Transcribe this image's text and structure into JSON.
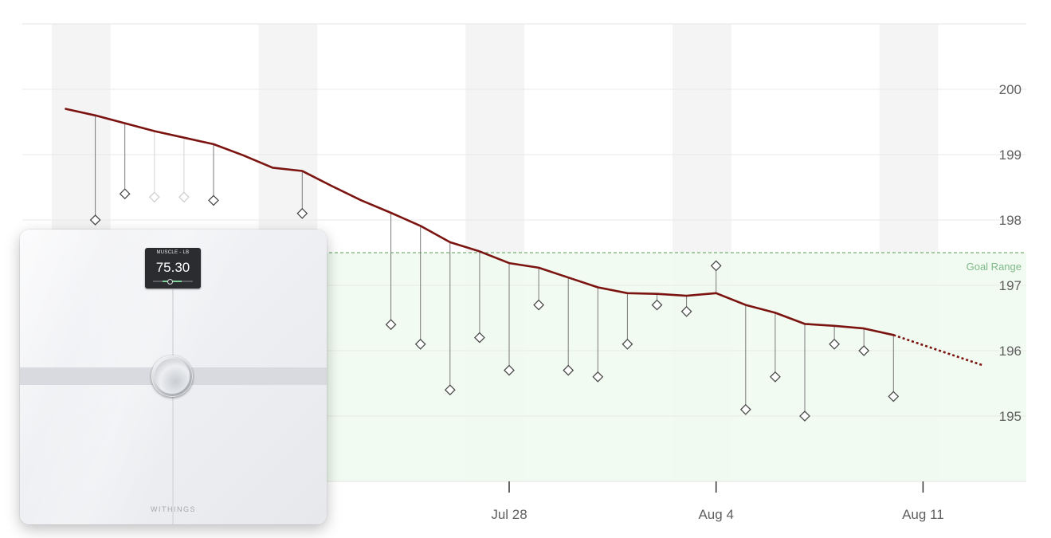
{
  "chart_data": {
    "type": "line",
    "x_labels": [
      "Jul 28",
      "Aug 4",
      "Aug 11"
    ],
    "ylim": [
      194,
      201
    ],
    "y_ticks": [
      195,
      196,
      197,
      198,
      199,
      200
    ],
    "goal_range": {
      "label": "Goal Range",
      "min": 194,
      "max": 197.5
    },
    "grid": true,
    "series": [
      {
        "kind": "trend",
        "values": [
          {
            "x": "Jul 14",
            "y": 199.6
          },
          {
            "x": "Jul 15",
            "y": 199.48
          },
          {
            "x": "Jul 16",
            "y": 199.36
          },
          {
            "x": "Jul 17",
            "y": 199.26
          },
          {
            "x": "Jul 18",
            "y": 199.16
          },
          {
            "x": "Jul 19",
            "y": 198.99
          },
          {
            "x": "Jul 20",
            "y": 198.8
          },
          {
            "x": "Jul 21",
            "y": 198.75
          },
          {
            "x": "Jul 22",
            "y": 198.52
          },
          {
            "x": "Jul 23",
            "y": 198.3
          },
          {
            "x": "Jul 24",
            "y": 198.11
          },
          {
            "x": "Jul 25",
            "y": 197.91
          },
          {
            "x": "Jul 26",
            "y": 197.66
          },
          {
            "x": "Jul 27",
            "y": 197.52
          },
          {
            "x": "Jul 28",
            "y": 197.34
          },
          {
            "x": "Jul 29",
            "y": 197.27
          },
          {
            "x": "Jul 30",
            "y": 197.12
          },
          {
            "x": "Jul 31",
            "y": 196.97
          },
          {
            "x": "Aug 1",
            "y": 196.88
          },
          {
            "x": "Aug 2",
            "y": 196.87
          },
          {
            "x": "Aug 3",
            "y": 196.84
          },
          {
            "x": "Aug 4",
            "y": 196.88
          },
          {
            "x": "Aug 5",
            "y": 196.7
          },
          {
            "x": "Aug 6",
            "y": 196.58
          },
          {
            "x": "Aug 7",
            "y": 196.41
          },
          {
            "x": "Aug 8",
            "y": 196.38
          },
          {
            "x": "Aug 9",
            "y": 196.34
          },
          {
            "x": "Aug 10",
            "y": 196.24
          }
        ],
        "projection": [
          {
            "x": "Aug 10",
            "y": 196.24
          },
          {
            "x": "Aug 13",
            "y": 195.78
          }
        ],
        "start": {
          "x": "Jul 13",
          "y": 199.7
        }
      },
      {
        "kind": "weighins",
        "values": [
          {
            "x": "Jul 14",
            "y": 198.0
          },
          {
            "x": "Jul 15",
            "y": 198.4
          },
          {
            "x": "Jul 16",
            "y": 198.35,
            "faded": true
          },
          {
            "x": "Jul 17",
            "y": 198.35,
            "faded": true
          },
          {
            "x": "Jul 18",
            "y": 198.3
          },
          {
            "x": "Jul 21",
            "y": 198.1
          },
          {
            "x": "Jul 24",
            "y": 196.4
          },
          {
            "x": "Jul 25",
            "y": 196.1
          },
          {
            "x": "Jul 26",
            "y": 195.4
          },
          {
            "x": "Jul 27",
            "y": 196.2
          },
          {
            "x": "Jul 28",
            "y": 195.7
          },
          {
            "x": "Jul 29",
            "y": 196.7
          },
          {
            "x": "Jul 30",
            "y": 195.7
          },
          {
            "x": "Jul 31",
            "y": 195.6
          },
          {
            "x": "Aug 1",
            "y": 196.1
          },
          {
            "x": "Aug 2",
            "y": 196.7
          },
          {
            "x": "Aug 3",
            "y": 196.6
          },
          {
            "x": "Aug 4",
            "y": 197.3
          },
          {
            "x": "Aug 5",
            "y": 195.1
          },
          {
            "x": "Aug 6",
            "y": 195.6
          },
          {
            "x": "Aug 7",
            "y": 195.0
          },
          {
            "x": "Aug 8",
            "y": 196.1
          },
          {
            "x": "Aug 9",
            "y": 196.0
          },
          {
            "x": "Aug 10",
            "y": 195.3
          }
        ]
      }
    ],
    "colors": {
      "trend": "#7b1410",
      "goal_fill": "#effaee",
      "goal_line": "#5a9a5a",
      "weekend_band": "#f4f4f4"
    }
  },
  "scale_display": {
    "title": "MUSCLE - LB",
    "value": "75.30",
    "brand": "WITHINGS"
  }
}
